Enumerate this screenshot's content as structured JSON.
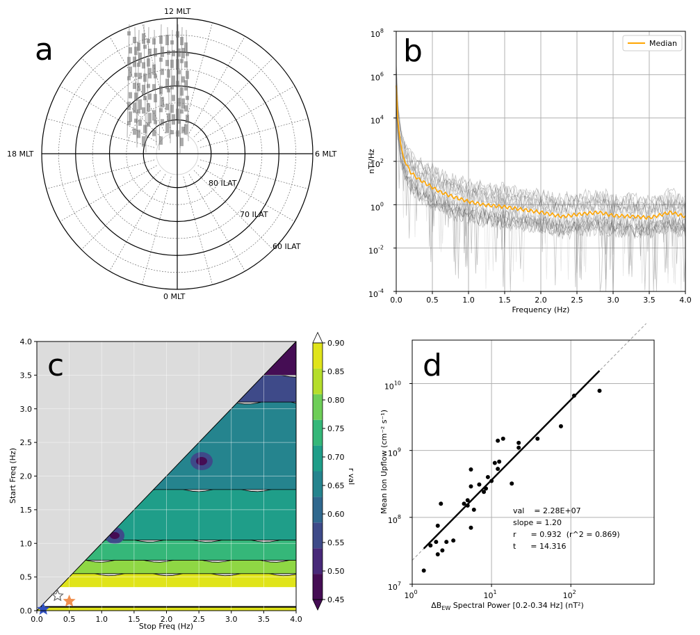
{
  "panel_labels": {
    "a": "a",
    "b": "b",
    "c": "c",
    "d": "d"
  },
  "chart_data": [
    {
      "panel": "a",
      "type": "polar",
      "mlt_labels": {
        "top": "12 MLT",
        "right": "6 MLT",
        "bottom": "0 MLT",
        "left": "18 MLT"
      },
      "ring_labels": [
        "80 ILAT",
        "70 ILAT",
        "60 ILAT"
      ],
      "ilat_rings": [
        80,
        70,
        60,
        50
      ],
      "track_color": "#888888"
    },
    {
      "panel": "b",
      "type": "line",
      "xlabel": "Frequency (Hz)",
      "ylabel": "nT²/Hz",
      "xlim": [
        0,
        4
      ],
      "ylim_log10": [
        -4,
        8
      ],
      "yscale": "log",
      "x_ticks": [
        "0.0",
        "0.5",
        "1.0",
        "1.5",
        "2.0",
        "2.5",
        "3.0",
        "3.5",
        "4.0"
      ],
      "y_tick_exponents": [
        "-4",
        "-2",
        "0",
        "2",
        "4",
        "6",
        "8"
      ],
      "y_tick_base": "10",
      "legend": {
        "label": "Median",
        "placement": "upper right",
        "color": "#ffa500"
      },
      "median": {
        "name": "Median",
        "x": [
          0.0,
          0.02,
          0.05,
          0.1,
          0.15,
          0.2,
          0.3,
          0.4,
          0.5,
          0.6,
          0.8,
          1.0,
          1.2,
          1.5,
          1.8,
          2.0,
          2.3,
          2.5,
          2.8,
          3.0,
          3.3,
          3.5,
          3.8,
          4.0
        ],
        "log10_y": [
          5.5,
          4.0,
          3.0,
          2.2,
          1.8,
          1.5,
          1.2,
          1.0,
          0.8,
          0.6,
          0.35,
          0.15,
          0.0,
          -0.1,
          -0.25,
          -0.35,
          -0.55,
          -0.45,
          -0.35,
          -0.5,
          -0.55,
          -0.6,
          -0.35,
          -0.55
        ]
      }
    },
    {
      "panel": "c",
      "type": "contour",
      "xlabel": "Stop Freq (Hz)",
      "ylabel": "Start Freq (Hz)",
      "xlim": [
        0,
        4
      ],
      "ylim": [
        0,
        4
      ],
      "x_ticks": [
        "0.0",
        "0.5",
        "1.0",
        "1.5",
        "2.0",
        "2.5",
        "3.0",
        "3.5",
        "4.0"
      ],
      "y_ticks": [
        "0.0",
        "0.5",
        "1.0",
        "1.5",
        "2.0",
        "2.5",
        "3.0",
        "3.5",
        "4.0"
      ],
      "colorbar": {
        "label": "r val",
        "levels": [
          0.45,
          0.5,
          0.55,
          0.6,
          0.65,
          0.7,
          0.75,
          0.8,
          0.85,
          0.9
        ],
        "tick_labels": [
          "0.90",
          "0.85",
          "0.80",
          "0.75",
          "0.70",
          "0.65",
          "0.60",
          "0.55",
          "0.50",
          "0.45"
        ],
        "colors": [
          "#450d54",
          "#482979",
          "#3e4a89",
          "#30688e",
          "#25848e",
          "#1f9e89",
          "#35b779",
          "#6ece58",
          "#b5de2b",
          "#e0e41a"
        ]
      },
      "bands": [
        {
          "r": 0.9,
          "color": "#e0e41a",
          "y_lo": 0.05,
          "y_hi": 0.55
        },
        {
          "r": 0.82,
          "color": "#8fd744",
          "y_lo": 0.55,
          "y_hi": 0.75
        },
        {
          "r": 0.77,
          "color": "#35b779",
          "y_lo": 0.75,
          "y_hi": 1.05
        },
        {
          "r": 0.72,
          "color": "#1f9e89",
          "y_lo": 1.05,
          "y_hi": 1.8
        },
        {
          "r": 0.67,
          "color": "#25848e",
          "y_lo": 1.8,
          "y_hi": 3.1
        },
        {
          "r": 0.6,
          "color": "#3e4a89",
          "y_lo": 3.1,
          "y_hi": 3.5
        },
        {
          "r": 0.45,
          "color": "#450d54",
          "y_lo": 3.5,
          "y_hi": 4.0
        }
      ],
      "markers": [
        {
          "x": 0.1,
          "y": 0.0,
          "color": "#3050c0"
        },
        {
          "x": 0.32,
          "y": 0.2,
          "color": "#ffffff"
        },
        {
          "x": 0.5,
          "y": 0.12,
          "color": "#f09050"
        }
      ]
    },
    {
      "panel": "d",
      "type": "scatter",
      "xlabel": "ΔB",
      "xlabel_sub": "EW",
      "xlabel_rest": " Spectral Power [0.2-0.34 Hz] (nT²)",
      "ylabel": "Mean Ion Upflow (cm⁻² s⁻¹)",
      "xscale": "log",
      "yscale": "log",
      "xlim_log10": [
        0,
        3
      ],
      "ylim_log10": [
        7,
        10.5
      ],
      "x_tick_exponents": [
        "0",
        "1",
        "2"
      ],
      "y_tick_exponents": [
        "7",
        "8",
        "9",
        "10"
      ],
      "tick_base": "10",
      "stats": [
        "val    = 2.28E+07",
        "slope = 1.20",
        "r      = 0.932  (r^2 = 0.869)",
        "t      = 14.316"
      ],
      "fit": {
        "log10_a": 7.358,
        "slope": 1.2
      },
      "points": [
        [
          1.4,
          16000000.0
        ],
        [
          1.7,
          38000000.0
        ],
        [
          2.0,
          43000000.0
        ],
        [
          2.1,
          28000000.0
        ],
        [
          2.1,
          75000000.0
        ],
        [
          2.3,
          160000000.0
        ],
        [
          2.4,
          32000000.0
        ],
        [
          2.7,
          43000000.0
        ],
        [
          3.3,
          45000000.0
        ],
        [
          4.5,
          160000000.0
        ],
        [
          5.0,
          150000000.0
        ],
        [
          5.0,
          180000000.0
        ],
        [
          5.5,
          70000000.0
        ],
        [
          5.5,
          290000000.0
        ],
        [
          5.5,
          520000000.0
        ],
        [
          6.0,
          130000000.0
        ],
        [
          7.0,
          310000000.0
        ],
        [
          8.0,
          240000000.0
        ],
        [
          8.5,
          270000000.0
        ],
        [
          9.0,
          400000000.0
        ],
        [
          10.0,
          350000000.0
        ],
        [
          11.0,
          650000000.0
        ],
        [
          12.0,
          530000000.0
        ],
        [
          12.0,
          1400000000.0
        ],
        [
          12.5,
          680000000.0
        ],
        [
          14.0,
          1500000000.0
        ],
        [
          18.0,
          320000000.0
        ],
        [
          22.0,
          1100000000.0
        ],
        [
          22.0,
          1300000000.0
        ],
        [
          38.0,
          1500000000.0
        ],
        [
          75.0,
          2300000000.0
        ],
        [
          110.0,
          6600000000.0
        ],
        [
          230.0,
          7800000000.0
        ]
      ]
    }
  ]
}
